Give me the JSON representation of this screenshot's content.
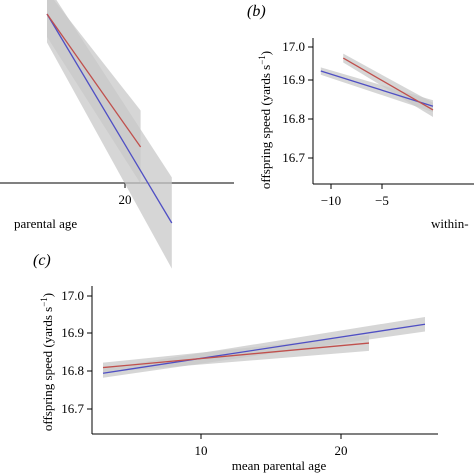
{
  "chart_data": [
    {
      "panel_label": "",
      "type": "line",
      "xlabel": "parental age",
      "ylabel": "",
      "x_ticks": [
        20
      ],
      "y_ticks": [],
      "grid": false,
      "series": [
        {
          "color": "#c0504d",
          "x": [
            10,
            22
          ],
          "values": [
            16.93,
            16.86
          ],
          "ci": 0.012
        },
        {
          "color": "#4f4fc4",
          "x": [
            10,
            26
          ],
          "values": [
            16.93,
            16.82
          ],
          "ci": 0.015
        }
      ]
    },
    {
      "panel_label": "(b)",
      "type": "line",
      "xlabel": "within-",
      "ylabel": "offspring speed (yards s",
      "ylabel_sup": "−1",
      "ylabel_close": ")",
      "x_ticks": [
        "−10",
        "−5"
      ],
      "x_tick_values": [
        -10,
        -5
      ],
      "y_ticks": [
        "16.7",
        "16.8",
        "16.9",
        "17.0"
      ],
      "y_tick_values": [
        16.7,
        16.8,
        16.9,
        17.0
      ],
      "xlim": [
        -12,
        0
      ],
      "ylim": [
        16.6,
        17.02
      ],
      "grid": false,
      "series": [
        {
          "color": "#c0504d",
          "x": [
            -8.8,
            0
          ],
          "values": [
            16.97,
            16.83
          ],
          "ci": 0.012
        },
        {
          "color": "#4f4fc4",
          "x": [
            -11,
            0
          ],
          "values": [
            16.935,
            16.84
          ],
          "ci": 0.01
        }
      ]
    },
    {
      "panel_label": "(c)",
      "type": "line",
      "xlabel": "mean parental age",
      "ylabel": "offspring speed (yards s",
      "ylabel_sup": "−1",
      "ylabel_close": ")",
      "x_ticks": [
        "10",
        "20"
      ],
      "x_tick_values": [
        10,
        20
      ],
      "y_ticks": [
        "16.7",
        "16.8",
        "16.9",
        "17.0"
      ],
      "y_tick_values": [
        16.7,
        16.8,
        16.9,
        17.0
      ],
      "xlim": [
        2,
        27
      ],
      "ylim": [
        16.64,
        17.02
      ],
      "grid": false,
      "series": [
        {
          "color": "#c0504d",
          "x": [
            3,
            22
          ],
          "values": [
            16.81,
            16.875
          ],
          "ci": 0.013
        },
        {
          "color": "#4f4fc4",
          "x": [
            3,
            26
          ],
          "values": [
            16.795,
            16.925
          ],
          "ci": 0.012
        }
      ]
    }
  ]
}
